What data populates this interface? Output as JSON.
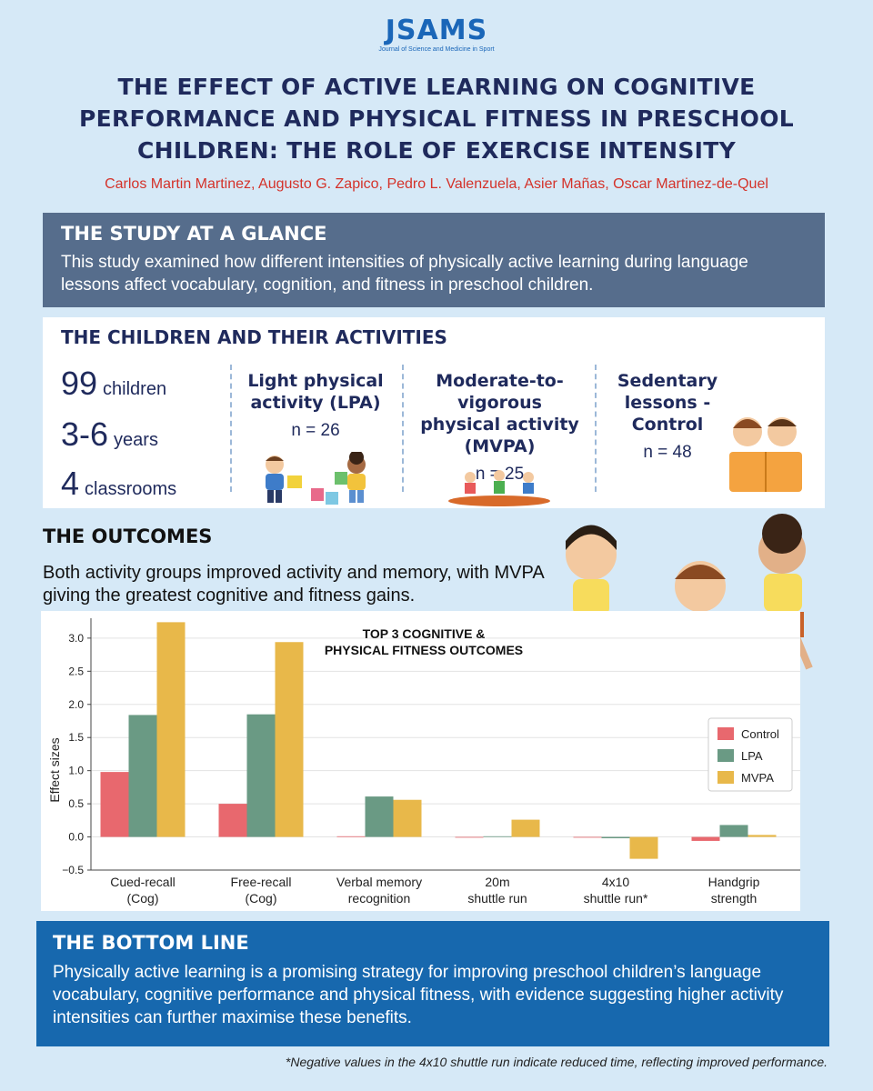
{
  "logo": {
    "name": "JSAMS",
    "subtitle": "Journal of Science and Medicine in Sport"
  },
  "title": "THE EFFECT OF ACTIVE LEARNING ON COGNITIVE PERFORMANCE AND PHYSICAL FITNESS IN PRESCHOOL CHILDREN: THE ROLE OF EXERCISE INTENSITY",
  "authors": "Carlos Martin Martinez, Augusto G. Zapico, Pedro L. Valenzuela, Asier Mañas, Oscar Martinez-de-Quel",
  "glance": {
    "heading": "THE STUDY AT A GLANCE",
    "text": "This study examined how different intensities of physically active learning during language lessons affect vocabulary, cognition, and fitness in preschool children."
  },
  "children": {
    "heading": "THE CHILDREN AND THEIR ACTIVITIES",
    "stats": [
      {
        "num": "99",
        "label": "children"
      },
      {
        "num": "3-6",
        "label": "years"
      },
      {
        "num": "4",
        "label": "classrooms"
      }
    ],
    "groups": [
      {
        "name": "Light physical activity (LPA)",
        "n": "n = 26"
      },
      {
        "name": "Moderate-to-vigorous physical activity (MVPA)",
        "n": "n = 25"
      },
      {
        "name": "Sedentary lessons - Control",
        "n": "n = 48"
      }
    ]
  },
  "outcomes": {
    "heading": "THE OUTCOMES",
    "text": "Both activity groups improved activity and memory, with MVPA giving the greatest cognitive and fitness gains."
  },
  "chart_data": {
    "type": "bar",
    "title": "TOP 3 COGNITIVE & PHYSICAL FITNESS OUTCOMES",
    "ylabel": "Effect sizes",
    "xlabel": "",
    "ylim": [
      -0.5,
      3.3
    ],
    "yticks": [
      "3.0",
      "2.5",
      "2.0",
      "1.5",
      "1.0",
      "0.5",
      "0.0",
      "−0.5"
    ],
    "categories": [
      [
        "Cued-recall",
        "(Cog)"
      ],
      [
        "Free-recall",
        "(Cog)"
      ],
      [
        "Verbal memory",
        "recognition"
      ],
      [
        "20m",
        "shuttle run"
      ],
      [
        "4x10",
        "shuttle run*"
      ],
      [
        "Handgrip",
        "strength"
      ]
    ],
    "series": [
      {
        "name": "Control",
        "color": "#e8686e",
        "values": [
          0.98,
          0.5,
          0.01,
          0.0,
          -0.01,
          -0.06
        ]
      },
      {
        "name": "LPA",
        "color": "#6a9a84",
        "values": [
          1.84,
          1.85,
          0.61,
          0.01,
          -0.02,
          0.18
        ]
      },
      {
        "name": "MVPA",
        "color": "#e8b84a",
        "values": [
          3.24,
          2.94,
          0.56,
          0.26,
          -0.33,
          0.03
        ]
      }
    ],
    "legend_position": "right",
    "grid": true
  },
  "bottom": {
    "heading": "THE BOTTOM LINE",
    "text": "Physically active learning is a promising strategy for improving preschool children’s language vocabulary, cognitive performance and physical fitness, with evidence suggesting higher activity intensities can further maximise these benefits."
  },
  "footnote": "*Negative values in the 4x10 shuttle run indicate reduced time, reflecting improved performance."
}
